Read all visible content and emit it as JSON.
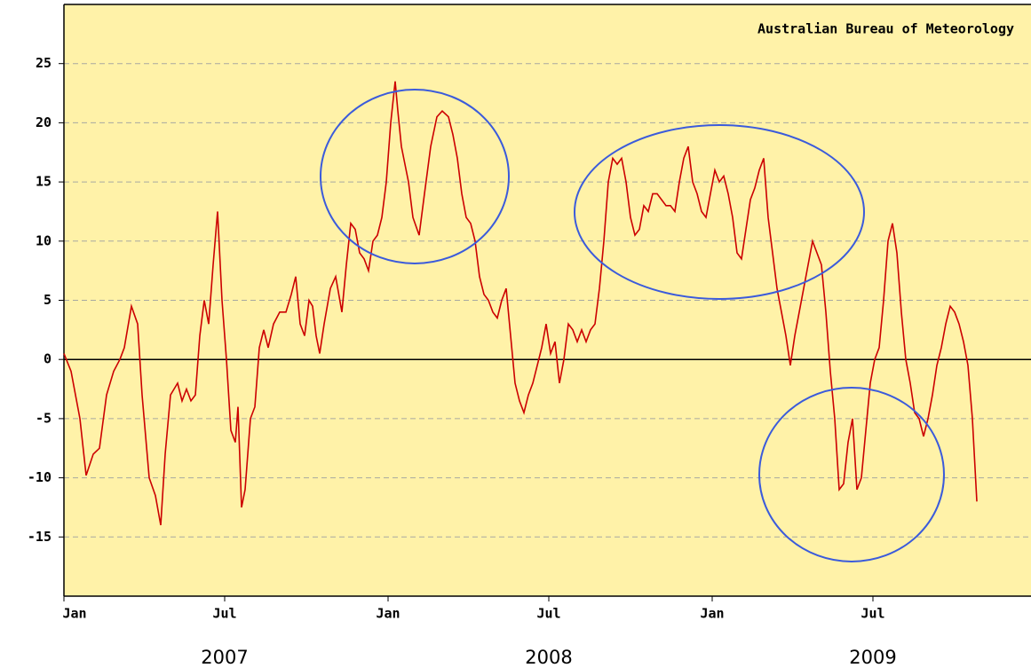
{
  "chart_data": {
    "type": "line",
    "source": "Australian Bureau of Meteorology",
    "x": [
      0,
      8,
      18,
      25,
      33,
      40,
      48,
      56,
      63,
      68,
      76,
      83,
      88,
      96,
      103,
      109,
      114,
      120,
      128,
      133,
      138,
      143,
      148,
      153,
      158,
      163,
      168,
      173,
      178,
      183,
      188,
      193,
      196,
      200,
      204,
      210,
      215,
      220,
      225,
      230,
      236,
      243,
      250,
      256,
      261,
      266,
      271,
      276,
      280,
      284,
      288,
      293,
      300,
      306,
      313,
      318,
      323,
      328,
      333,
      338,
      343,
      348,
      353,
      358,
      363,
      368,
      373,
      376,
      380,
      388,
      393,
      400,
      406,
      413,
      420,
      426,
      433,
      438,
      443,
      448,
      453,
      458,
      463,
      468,
      473,
      478,
      483,
      488,
      493,
      498,
      503,
      508,
      513,
      518,
      523,
      528,
      533,
      538,
      543,
      548,
      553,
      558,
      563,
      568,
      573,
      578,
      583,
      588,
      593,
      598,
      603,
      608,
      613,
      618,
      623,
      628,
      633,
      638,
      643,
      648,
      653,
      658,
      663,
      668,
      673,
      678,
      683,
      688,
      693,
      698,
      703,
      708,
      713,
      718,
      723,
      728,
      733,
      738,
      743,
      748,
      753,
      758,
      763,
      768,
      773,
      778,
      783,
      788,
      793,
      798,
      803,
      808,
      813,
      818,
      823,
      828,
      833,
      838,
      843,
      848,
      853,
      858,
      863,
      868,
      873,
      878,
      883,
      888,
      893,
      898,
      903,
      908,
      913,
      918,
      923,
      928,
      933,
      938,
      943,
      948,
      953,
      958,
      963,
      968,
      973,
      978,
      983,
      988,
      993,
      998,
      1003,
      1008,
      1013,
      1018,
      1023,
      1028
    ],
    "values": [
      0.5,
      -1,
      -5,
      -9.8,
      -8,
      -7.5,
      -3,
      -1,
      0,
      1,
      4.5,
      3,
      -3,
      -10,
      -11.5,
      -14,
      -8,
      -3,
      -2,
      -3.5,
      -2.5,
      -3.5,
      -3,
      2,
      5,
      3,
      8,
      12.5,
      5,
      0,
      -6,
      -7,
      -4,
      -12.5,
      -11,
      -5,
      -4,
      1,
      2.5,
      1,
      3,
      4,
      4,
      5.5,
      7,
      3,
      2,
      5,
      4.5,
      2,
      0.5,
      3,
      6,
      7,
      4,
      8,
      11.5,
      11,
      9,
      8.5,
      7.5,
      10,
      10.5,
      12,
      15,
      20,
      23.5,
      21,
      18,
      15,
      12,
      10.5,
      14,
      18,
      20.5,
      21,
      20.5,
      19,
      17,
      14,
      12,
      11.5,
      10,
      7,
      5.5,
      5,
      4,
      3.5,
      5,
      6,
      2,
      -2,
      -3.5,
      -4.5,
      -3,
      -2,
      -0.5,
      1,
      3,
      0.5,
      1.5,
      -2,
      0,
      3,
      2.5,
      1.5,
      2.5,
      1.5,
      2.5,
      3,
      6,
      10,
      15,
      17,
      16.5,
      17,
      15,
      12,
      10.5,
      11,
      13,
      12.5,
      14,
      14,
      13.5,
      13,
      13,
      12.5,
      15,
      17,
      18,
      15,
      14,
      12.5,
      12,
      14,
      16,
      15,
      15.5,
      14,
      12,
      9,
      8.5,
      11,
      13.5,
      14.5,
      16,
      17,
      12,
      9,
      6,
      4,
      2,
      -0.5,
      2,
      4,
      6,
      8,
      10,
      9,
      8,
      4,
      -1,
      -5,
      -11,
      -10.5,
      -7,
      -5,
      -11,
      -10,
      -6,
      -2,
      0,
      1,
      5,
      10,
      11.5,
      9,
      4,
      0,
      -2,
      -4.5,
      -5,
      -6.5,
      -5,
      -3,
      -0.5,
      1,
      3,
      4.5,
      4,
      3,
      1.5,
      -0.5,
      -5,
      -12
    ],
    "color": "#cc0000",
    "xlim": [
      0,
      1089
    ],
    "xticks": [
      {
        "value": 0,
        "label": "Jan"
      },
      {
        "value": 181,
        "label": "Jul"
      },
      {
        "value": 365,
        "label": "Jan"
      },
      {
        "value": 546,
        "label": "Jul"
      },
      {
        "value": 730,
        "label": "Jan"
      },
      {
        "value": 911,
        "label": "Jul"
      }
    ],
    "years": [
      "2007",
      "2008",
      "2009"
    ],
    "ylim": [
      -20,
      30
    ],
    "yticks": [
      -15,
      -10,
      -5,
      0,
      5,
      10,
      15,
      20,
      25
    ],
    "grid": true
  }
}
